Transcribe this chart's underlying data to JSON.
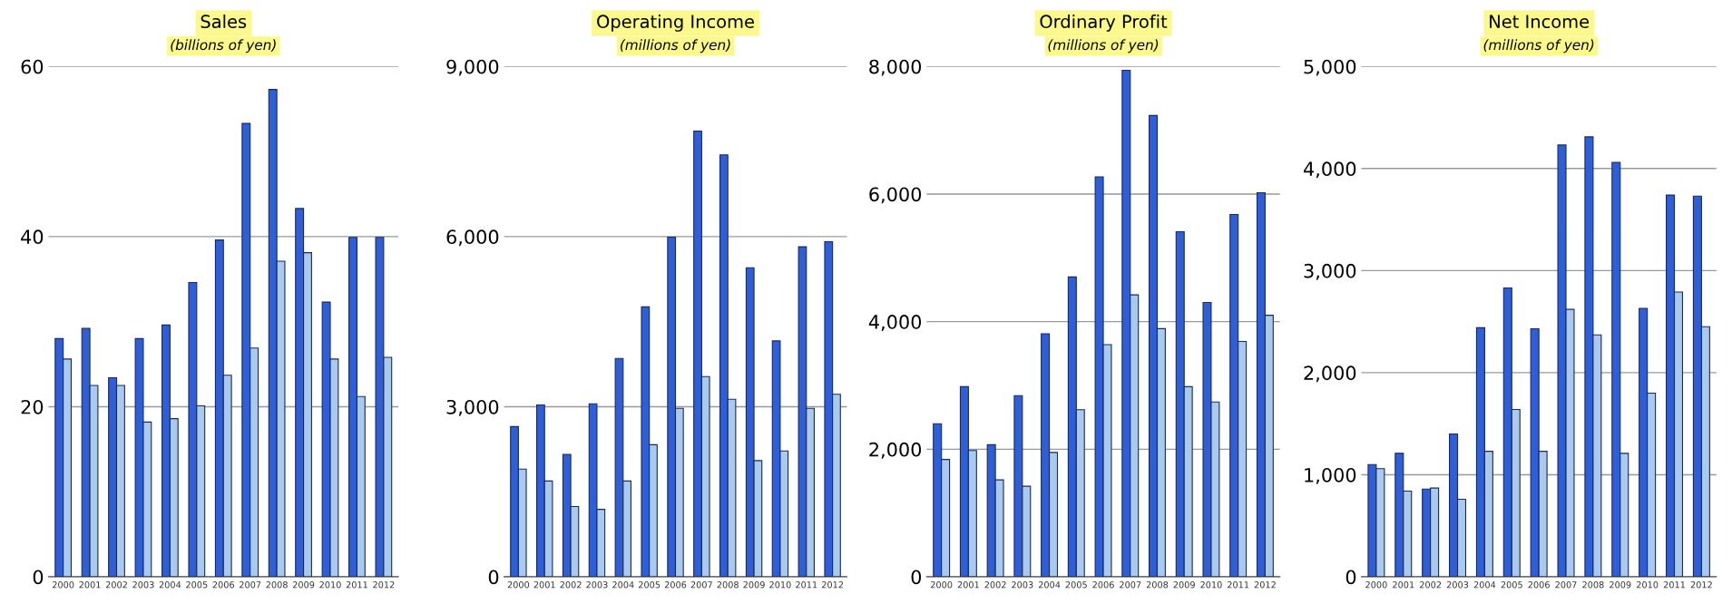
{
  "chart_data": [
    {
      "type": "bar",
      "title": "Sales",
      "subtitle": "(billions of yen)",
      "categories": [
        "2000",
        "2001",
        "2002",
        "2003",
        "2004",
        "2005",
        "2006",
        "2007",
        "2008",
        "2009",
        "2010",
        "2011",
        "2012"
      ],
      "series": [
        {
          "color": "#2f5fd8",
          "values": [
            28,
            29.2,
            23.4,
            28,
            29.6,
            34.6,
            39.6,
            53.3,
            57.3,
            43.3,
            32.3,
            39.9,
            39.9
          ]
        },
        {
          "color": "#a9c9ee",
          "values": [
            25.6,
            22.5,
            22.5,
            18.2,
            18.6,
            20.1,
            23.7,
            26.9,
            37.1,
            38.1,
            25.6,
            21.2,
            25.8
          ]
        }
      ],
      "ylim": [
        0,
        60
      ],
      "yticks": [
        0,
        20,
        40,
        60
      ],
      "grid": "y"
    },
    {
      "type": "bar",
      "title": "Operating Income",
      "subtitle": "(millions of yen)",
      "categories": [
        "2000",
        "2001",
        "2002",
        "2003",
        "2004",
        "2005",
        "2006",
        "2007",
        "2008",
        "2009",
        "2010",
        "2011",
        "2012"
      ],
      "series": [
        {
          "color": "#2f5fd8",
          "values": [
            2650,
            3030,
            2160,
            3050,
            3850,
            4760,
            5990,
            7860,
            7440,
            5450,
            4160,
            5820,
            5910
          ]
        },
        {
          "color": "#a9c9ee",
          "values": [
            1900,
            1690,
            1240,
            1190,
            1690,
            2330,
            2970,
            3530,
            3130,
            2050,
            2220,
            2970,
            3220
          ]
        }
      ],
      "ylim": [
        0,
        9000
      ],
      "yticks": [
        0,
        {
          "value": 3000,
          "label": "3,000"
        },
        {
          "value": 6000,
          "label": "6,000"
        },
        {
          "value": 9000,
          "label": "9,000"
        }
      ],
      "grid": "y"
    },
    {
      "type": "bar",
      "title": "Ordinary Profit",
      "subtitle": "(millions of yen)",
      "categories": [
        "2000",
        "2001",
        "2002",
        "2003",
        "2004",
        "2005",
        "2006",
        "2007",
        "2008",
        "2009",
        "2010",
        "2011",
        "2012"
      ],
      "series": [
        {
          "color": "#2f5fd8",
          "values": [
            2400,
            2980,
            2070,
            2840,
            3810,
            4700,
            6270,
            7940,
            7230,
            5410,
            4300,
            5680,
            6020
          ]
        },
        {
          "color": "#a9c9ee",
          "values": [
            1840,
            1980,
            1520,
            1420,
            1950,
            2620,
            3640,
            4420,
            3890,
            2980,
            2740,
            3690,
            4100
          ]
        }
      ],
      "ylim": [
        0,
        8000
      ],
      "yticks": [
        0,
        {
          "value": 2000,
          "label": "2,000"
        },
        {
          "value": 4000,
          "label": "4,000"
        },
        {
          "value": 6000,
          "label": "6,000"
        },
        {
          "value": 8000,
          "label": "8,000"
        }
      ],
      "grid": "y"
    },
    {
      "type": "bar",
      "title": "Net Income",
      "subtitle": "(millions of yen)",
      "categories": [
        "2000",
        "2001",
        "2002",
        "2003",
        "2004",
        "2005",
        "2006",
        "2007",
        "2008",
        "2009",
        "2010",
        "2011",
        "2012"
      ],
      "series": [
        {
          "color": "#2f5fd8",
          "values": [
            1100,
            1210,
            860,
            1400,
            2440,
            2830,
            2430,
            4230,
            4310,
            4060,
            2630,
            3740,
            3730
          ]
        },
        {
          "color": "#a9c9ee",
          "values": [
            1060,
            840,
            870,
            760,
            1230,
            1640,
            1230,
            2620,
            2370,
            1210,
            1800,
            2790,
            2450
          ]
        }
      ],
      "ylim": [
        0,
        5000
      ],
      "yticks": [
        0,
        {
          "value": 1000,
          "label": "1,000"
        },
        {
          "value": 2000,
          "label": "2,000"
        },
        {
          "value": 3000,
          "label": "3,000"
        },
        {
          "value": 4000,
          "label": "4,000"
        },
        {
          "value": 5000,
          "label": "5,000"
        }
      ],
      "grid": "y"
    }
  ]
}
